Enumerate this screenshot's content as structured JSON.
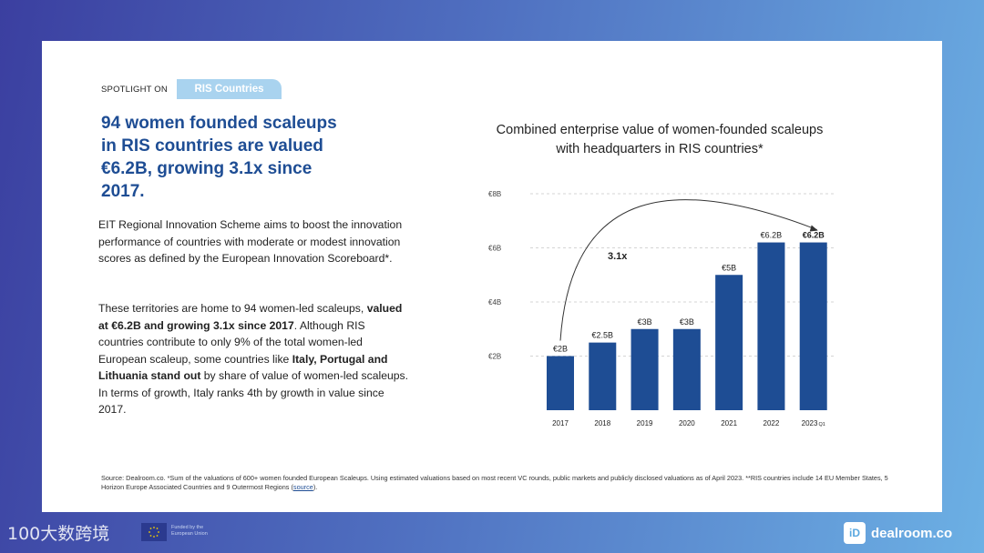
{
  "spotlight": {
    "label": "SPOTLIGHT ON",
    "pill": "RIS Countries"
  },
  "headline": "94 women founded scaleups in RIS countries are valued €6.2B, growing 3.1x since 2017.",
  "paragraph1": "EIT Regional Innovation Scheme aims to boost the innovation performance of countries with moderate or modest innovation scores as defined by the European Innovation Scoreboard*.",
  "paragraph2": {
    "t1": "These territories are home  to 94 women-led scaleups, ",
    "b1": "valued at €6.2B and growing 3.1x since 2017",
    "t2": ". Although RIS countries contribute to only 9% of the total women-led European scaleup, some countries like ",
    "b2": "Italy, Portugal and Lithuania stand out",
    "t3": " by share of value of women-led scaleups. In terms of growth, Italy ranks 4th by growth in value since 2017."
  },
  "chart_title": "Combined enterprise value of women-founded scaleups with headquarters in RIS countries*",
  "chart_data": {
    "type": "bar",
    "title": "Combined enterprise value of women-founded scaleups with headquarters in RIS countries*",
    "categories": [
      "2017",
      "2018",
      "2019",
      "2020",
      "2021",
      "2022",
      "2023"
    ],
    "category_suffix_last": "Q1",
    "values": [
      2,
      2.5,
      3,
      3,
      5,
      6.2,
      6.2
    ],
    "data_labels": [
      "€2B",
      "€2.5B",
      "€3B",
      "€3B",
      "€5B",
      "€6.2B",
      "€6.2B"
    ],
    "y_ticks": [
      "€2B",
      "€4B",
      "€6B",
      "€8B"
    ],
    "y_tick_values": [
      2,
      4,
      6,
      8
    ],
    "ylim": [
      0,
      8
    ],
    "gridlines": "dashed",
    "annotation": "3.1x",
    "bar_color": "#1e4d94"
  },
  "source": {
    "text": "Source: Dealroom.co. *Sum of the valuations of 600+ women founded European Scaleups. Using estimated valuations based on most recent VC rounds, public markets and publicly disclosed valuations as of April 2023. **RIS countries include 14 EU Member States, 5 Horizon Europe Associated Countries and 9 Outermost Regions (",
    "link": "source",
    "end": ")."
  },
  "footer": {
    "eu_text": "Funded by the European Union",
    "watermark": "100大数跨境",
    "brand_icon": "iD",
    "brand_name": "dealroom.co"
  }
}
